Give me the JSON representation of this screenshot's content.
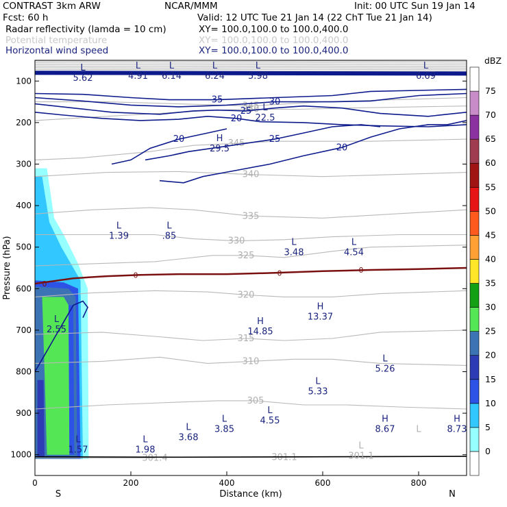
{
  "header": {
    "model": "CONTRAST  3km ARW",
    "org": "NCAR/MMM",
    "init": "Init: 00 UTC Sun 19 Jan 14",
    "fcst": "Fcst:    60 h",
    "valid": "Valid: 12 UTC Tue 21 Jan 14 (22 ChT Tue 21 Jan 14)",
    "field1": "Radar reflectivity (lamda = 10 cm)",
    "xy1": "XY= 100.0,100.0 to 100.0,400.0",
    "field2": "Potential temperature",
    "xy2": "XY= 100.0,100.0 to 100.0,400.0",
    "field3": "Horizontal wind speed",
    "xy3": "XY= 100.0,100.0 to 100.0,400.0"
  },
  "colorbar": {
    "unit": "dBZ",
    "levels": [
      "0",
      "5",
      "10",
      "15",
      "20",
      "25",
      "30",
      "35",
      "40",
      "45",
      "50",
      "55",
      "60",
      "65",
      "70",
      "75"
    ],
    "colors": [
      "#ffffff",
      "#96ffff",
      "#32c8ff",
      "#2d52e6",
      "#2d3cb4",
      "#3c73b4",
      "#55e655",
      "#14a014",
      "#ffe628",
      "#ffa034",
      "#ff5a1e",
      "#e61414",
      "#a01414",
      "#a03c50",
      "#8c32a0",
      "#c88cc8",
      "#ffffff"
    ]
  },
  "chart_data": {
    "type": "heatmap",
    "title": "Radar reflectivity (lamda = 10 cm), Potential temperature, Horizontal wind speed",
    "xlabel": "Distance (km)",
    "ylabel": "Pressure (hPa)",
    "xlim": [
      0,
      900
    ],
    "ylim": [
      1050,
      50
    ],
    "x_ticks": [
      0,
      200,
      400,
      600,
      800
    ],
    "y_ticks": [
      100,
      200,
      300,
      400,
      500,
      600,
      700,
      800,
      900,
      1000
    ],
    "x_end_labels": {
      "left": "S",
      "right": "N"
    },
    "wind_contours": [
      {
        "label": "35",
        "points": [
          [
            0,
            130
          ],
          [
            100,
            132
          ],
          [
            200,
            140
          ],
          [
            280,
            145
          ],
          [
            380,
            145
          ],
          [
            500,
            140
          ],
          [
            620,
            135
          ],
          [
            700,
            125
          ],
          [
            900,
            120
          ]
        ]
      },
      {
        "label": "30",
        "points": [
          [
            0,
            140
          ],
          [
            100,
            148
          ],
          [
            200,
            158
          ],
          [
            300,
            162
          ],
          [
            400,
            158
          ],
          [
            500,
            150
          ],
          [
            620,
            150
          ],
          [
            700,
            148
          ],
          [
            800,
            135
          ],
          [
            900,
            130
          ]
        ]
      },
      {
        "label": "25",
        "points": [
          [
            0,
            155
          ],
          [
            80,
            165
          ],
          [
            160,
            175
          ],
          [
            260,
            180
          ],
          [
            330,
            172
          ],
          [
            380,
            170
          ],
          [
            440,
            172
          ],
          [
            500,
            165
          ],
          [
            560,
            160
          ],
          [
            640,
            165
          ],
          [
            720,
            178
          ],
          [
            820,
            185
          ],
          [
            900,
            175
          ]
        ]
      },
      {
        "label": "20",
        "points": [
          [
            0,
            175
          ],
          [
            60,
            182
          ],
          [
            140,
            190
          ],
          [
            220,
            195
          ],
          [
            300,
            192
          ],
          [
            360,
            185
          ],
          [
            420,
            190
          ],
          [
            470,
            198
          ],
          [
            560,
            200
          ],
          [
            640,
            205
          ],
          [
            720,
            208
          ],
          [
            820,
            210
          ],
          [
            900,
            205
          ]
        ]
      },
      {
        "label": "25",
        "points": [
          [
            230,
            290
          ],
          [
            280,
            280
          ],
          [
            320,
            270
          ],
          [
            380,
            260
          ],
          [
            440,
            250
          ],
          [
            500,
            240
          ],
          [
            560,
            225
          ],
          [
            620,
            210
          ],
          [
            680,
            205
          ],
          [
            720,
            210
          ]
        ]
      },
      {
        "label": "20",
        "points": [
          [
            160,
            300
          ],
          [
            200,
            290
          ],
          [
            240,
            262
          ],
          [
            300,
            240
          ],
          [
            360,
            225
          ],
          [
            400,
            215
          ]
        ]
      },
      {
        "label": "20",
        "points": [
          [
            260,
            340
          ],
          [
            310,
            345
          ],
          [
            350,
            330
          ],
          [
            420,
            315
          ],
          [
            490,
            300
          ],
          [
            560,
            280
          ],
          [
            640,
            260
          ],
          [
            700,
            235
          ],
          [
            760,
            215
          ],
          [
            820,
            205
          ],
          [
            860,
            205
          ],
          [
            900,
            195
          ]
        ]
      }
    ],
    "theta_contours": [
      {
        "label": "345",
        "points": [
          [
            0,
            150
          ],
          [
            150,
            150
          ],
          [
            300,
            155
          ],
          [
            450,
            160
          ],
          [
            600,
            150
          ],
          [
            900,
            140
          ]
        ]
      },
      {
        "label": "350",
        "points": [
          [
            0,
            195
          ],
          [
            150,
            185
          ],
          [
            300,
            175
          ],
          [
            380,
            170
          ],
          [
            450,
            168
          ],
          [
            550,
            168
          ],
          [
            650,
            165
          ],
          [
            900,
            160
          ]
        ]
      },
      {
        "label": "345",
        "points": [
          [
            0,
            290
          ],
          [
            100,
            285
          ],
          [
            240,
            270
          ],
          [
            330,
            255
          ],
          [
            420,
            250
          ],
          [
            500,
            245
          ],
          [
            600,
            245
          ],
          [
            700,
            245
          ],
          [
            900,
            240
          ]
        ]
      },
      {
        "label": "340",
        "points": [
          [
            0,
            330
          ],
          [
            150,
            320
          ],
          [
            300,
            318
          ],
          [
            450,
            325
          ],
          [
            600,
            330
          ],
          [
            750,
            325
          ],
          [
            900,
            320
          ]
        ]
      },
      {
        "label": "335",
        "points": [
          [
            0,
            420
          ],
          [
            120,
            410
          ],
          [
            240,
            405
          ],
          [
            330,
            410
          ],
          [
            450,
            425
          ],
          [
            600,
            430
          ],
          [
            750,
            420
          ],
          [
            900,
            410
          ]
        ]
      },
      {
        "label": "330",
        "points": [
          [
            0,
            470
          ],
          [
            120,
            470
          ],
          [
            250,
            470
          ],
          [
            330,
            480
          ],
          [
            420,
            485
          ],
          [
            520,
            482
          ],
          [
            620,
            475
          ],
          [
            760,
            470
          ],
          [
            900,
            470
          ]
        ]
      },
      {
        "label": "325",
        "points": [
          [
            0,
            545
          ],
          [
            120,
            540
          ],
          [
            250,
            535
          ],
          [
            370,
            520
          ],
          [
            440,
            520
          ],
          [
            520,
            525
          ],
          [
            620,
            510
          ],
          [
            700,
            500
          ],
          [
            900,
            495
          ]
        ]
      },
      {
        "label": "320",
        "points": [
          [
            0,
            620
          ],
          [
            120,
            610
          ],
          [
            250,
            605
          ],
          [
            360,
            608
          ],
          [
            440,
            615
          ],
          [
            520,
            620
          ],
          [
            620,
            620
          ],
          [
            720,
            612
          ],
          [
            900,
            605
          ]
        ]
      },
      {
        "label": "315",
        "points": [
          [
            0,
            710
          ],
          [
            140,
            705
          ],
          [
            250,
            715
          ],
          [
            350,
            725
          ],
          [
            440,
            720
          ],
          [
            520,
            725
          ],
          [
            620,
            720
          ],
          [
            720,
            705
          ],
          [
            900,
            700
          ]
        ]
      },
      {
        "label": "310",
        "points": [
          [
            0,
            780
          ],
          [
            140,
            775
          ],
          [
            260,
            765
          ],
          [
            360,
            780
          ],
          [
            450,
            775
          ],
          [
            540,
            770
          ],
          [
            620,
            770
          ],
          [
            720,
            780
          ],
          [
            900,
            785
          ]
        ]
      },
      {
        "label": "305",
        "points": [
          [
            0,
            890
          ],
          [
            150,
            880
          ],
          [
            260,
            875
          ],
          [
            380,
            870
          ],
          [
            460,
            870
          ],
          [
            560,
            880
          ],
          [
            650,
            880
          ],
          [
            760,
            885
          ],
          [
            900,
            890
          ]
        ]
      },
      {
        "label": "301.4",
        "points": [
          [
            0,
            1008
          ],
          [
            250,
            1008
          ]
        ]
      },
      {
        "label": "301.1",
        "points": [
          [
            280,
            1006
          ],
          [
            520,
            1006
          ],
          [
            900,
            1004
          ]
        ]
      }
    ],
    "zero_line": {
      "label": "0",
      "points": [
        [
          0,
          588
        ],
        [
          80,
          575
        ],
        [
          150,
          570
        ],
        [
          220,
          567
        ],
        [
          300,
          565
        ],
        [
          400,
          565
        ],
        [
          500,
          562
        ],
        [
          600,
          558
        ],
        [
          700,
          555
        ],
        [
          800,
          553
        ],
        [
          900,
          550
        ]
      ]
    },
    "tropopause_wind": {
      "label": "20",
      "points": [
        [
          0,
          80
        ],
        [
          900,
          82
        ]
      ]
    },
    "reflectivity_region": {
      "x_range": [
        0,
        110
      ],
      "p_range": [
        310,
        1010
      ]
    },
    "annotations": [
      {
        "type": "L",
        "value": "5.62",
        "x": 100,
        "p": 80
      },
      {
        "type": "L",
        "value": "4.91",
        "x": 215,
        "p": 75
      },
      {
        "type": "L",
        "value": "6.14",
        "x": 285,
        "p": 75
      },
      {
        "type": "L",
        "value": "6.24",
        "x": 375,
        "p": 75
      },
      {
        "type": "L",
        "value": "5.98",
        "x": 465,
        "p": 75
      },
      {
        "type": "L",
        "value": "6.69",
        "x": 815,
        "p": 75
      },
      {
        "type": "L",
        "value": "22.5",
        "x": 480,
        "p": 175
      },
      {
        "type": "H",
        "value": "29.5",
        "x": 385,
        "p": 250
      },
      {
        "type": "L",
        "value": "1.39",
        "x": 175,
        "p": 460
      },
      {
        "type": "L",
        "value": ".85",
        "x": 280,
        "p": 460
      },
      {
        "type": "L",
        "value": "3.48",
        "x": 540,
        "p": 500
      },
      {
        "type": "L",
        "value": "4.54",
        "x": 665,
        "p": 500
      },
      {
        "type": "H",
        "value": "13.37",
        "x": 595,
        "p": 655
      },
      {
        "type": "H",
        "value": "14.85",
        "x": 470,
        "p": 690
      },
      {
        "type": "L",
        "value": "2.55",
        "x": 45,
        "p": 685
      },
      {
        "type": "L",
        "value": "5.26",
        "x": 730,
        "p": 780
      },
      {
        "type": "L",
        "value": "5.33",
        "x": 590,
        "p": 835
      },
      {
        "type": "L",
        "value": "4.55",
        "x": 490,
        "p": 905
      },
      {
        "type": "L",
        "value": "3.85",
        "x": 395,
        "p": 925
      },
      {
        "type": "L",
        "value": "3.68",
        "x": 320,
        "p": 945
      },
      {
        "type": "L",
        "value": "1.98",
        "x": 230,
        "p": 975
      },
      {
        "type": "L",
        "value": "1.57",
        "x": 90,
        "p": 975
      },
      {
        "type": "H",
        "value": "8.67",
        "x": 730,
        "p": 925
      },
      {
        "type": "H",
        "value": "8.73",
        "x": 880,
        "p": 925
      }
    ],
    "theta_extra_labels": [
      {
        "type": "L",
        "value": "",
        "x": 800,
        "p": 950
      },
      {
        "type": "L",
        "value": "301.1",
        "x": 680,
        "p": 990
      }
    ]
  }
}
